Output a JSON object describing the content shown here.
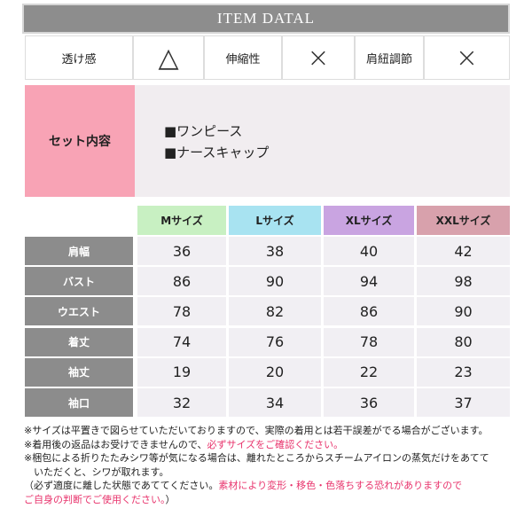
{
  "header": {
    "title": "ITEM DATAL"
  },
  "attributes": [
    {
      "label": "透け感",
      "value": "△"
    },
    {
      "label": "伸縮性",
      "value": "×"
    },
    {
      "label": "肩紐調節",
      "value": "×"
    }
  ],
  "set_contents": {
    "label": "セット内容",
    "items": [
      "■ワンピース",
      "■ナースキャップ"
    ]
  },
  "size_table": {
    "columns": [
      {
        "label": "Mサイズ",
        "color": "#c8f0c2"
      },
      {
        "label": "Lサイズ",
        "color": "#a8e3f1"
      },
      {
        "label": "XLサイズ",
        "color": "#c9a4e1"
      },
      {
        "label": "XXLサイズ",
        "color": "#d8a1ac"
      }
    ],
    "rows": [
      {
        "label": "肩幅",
        "values": [
          "36",
          "38",
          "40",
          "42"
        ]
      },
      {
        "label": "バスト",
        "values": [
          "86",
          "90",
          "94",
          "98"
        ]
      },
      {
        "label": "ウエスト",
        "values": [
          "78",
          "82",
          "86",
          "90"
        ]
      },
      {
        "label": "着丈",
        "values": [
          "74",
          "76",
          "78",
          "80"
        ]
      },
      {
        "label": "袖丈",
        "values": [
          "19",
          "20",
          "22",
          "23"
        ]
      },
      {
        "label": "袖口",
        "values": [
          "32",
          "34",
          "36",
          "37"
        ]
      }
    ]
  },
  "notes": [
    [
      {
        "text": "※サイズは平置きで図らせていただいておりますので、実際の着用とは若干誤差がでる場合がございます。",
        "color": "#222222"
      }
    ],
    [
      {
        "text": "※着用後の返品はお受けできませんので、",
        "color": "#222222"
      },
      {
        "text": "必ずサイズをご確認ください。",
        "color": "#e8336c"
      }
    ],
    [
      {
        "text": "※梱包による折りたたみシワ等が気になる場合は、離れたところからスチームアイロンの蒸気だけをあてて",
        "color": "#222222"
      }
    ],
    [
      {
        "text": "　いただくと、シワが取れます。",
        "color": "#222222"
      }
    ],
    [
      {
        "text": "（必ず適度に離した状態であててください。",
        "color": "#222222"
      },
      {
        "text": "素材により変形・移色・色落ちする恐れがありますので",
        "color": "#e8336c"
      }
    ],
    [
      {
        "text": "ご自身の判断でご使用ください。",
        "color": "#e8336c"
      },
      {
        "text": "）",
        "color": "#222222"
      }
    ]
  ]
}
